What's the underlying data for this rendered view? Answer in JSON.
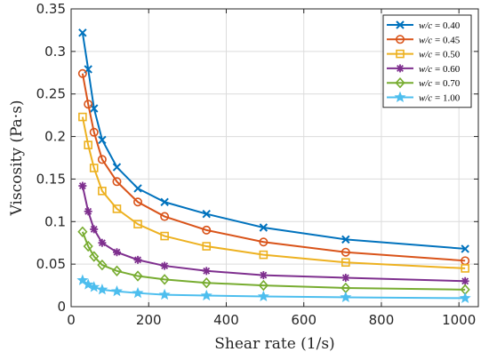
{
  "chart_data": {
    "type": "line",
    "xlabel": "Shear rate (1/s)",
    "ylabel": "Viscosity (Pa·s)",
    "xlim": [
      0,
      1050
    ],
    "ylim": [
      0,
      0.35
    ],
    "xticks": [
      0,
      200,
      400,
      600,
      800,
      1000
    ],
    "xtick_labels": [
      "0",
      "200",
      "400",
      "600",
      "800",
      "1000"
    ],
    "yticks": [
      0,
      0.05,
      0.1,
      0.15,
      0.2,
      0.25,
      0.3,
      0.35
    ],
    "ytick_labels": [
      "0",
      "0.05",
      "0.1",
      "0.15",
      "0.2",
      "0.25",
      "0.3",
      "0.35"
    ],
    "grid": true,
    "legend_position": "top-right",
    "x": [
      29.5,
      44,
      59,
      80,
      118,
      172,
      241,
      349,
      496,
      708,
      1016
    ],
    "series": [
      {
        "name_var": "w/c",
        "name_value": "= 0.40",
        "marker": "x",
        "color": "#0072BD",
        "values": [
          0.322,
          0.279,
          0.233,
          0.196,
          0.164,
          0.139,
          0.123,
          0.109,
          0.093,
          0.079,
          0.068
        ]
      },
      {
        "name_var": "w/c",
        "name_value": "= 0.45",
        "marker": "o",
        "color": "#D95319",
        "values": [
          0.274,
          0.238,
          0.205,
          0.173,
          0.147,
          0.123,
          0.106,
          0.09,
          0.076,
          0.064,
          0.054
        ]
      },
      {
        "name_var": "w/c",
        "name_value": "= 0.50",
        "marker": "s",
        "color": "#EDB120",
        "values": [
          0.223,
          0.19,
          0.163,
          0.136,
          0.115,
          0.097,
          0.083,
          0.071,
          0.061,
          0.052,
          0.045
        ]
      },
      {
        "name_var": "w/c",
        "name_value": "= 0.60",
        "marker": "*",
        "color": "#7E2F8E",
        "values": [
          0.142,
          0.112,
          0.091,
          0.075,
          0.064,
          0.055,
          0.048,
          0.042,
          0.037,
          0.034,
          0.03
        ]
      },
      {
        "name_var": "w/c",
        "name_value": "= 0.70",
        "marker": "d",
        "color": "#77AC30",
        "values": [
          0.088,
          0.071,
          0.059,
          0.049,
          0.042,
          0.036,
          0.032,
          0.028,
          0.025,
          0.022,
          0.02
        ]
      },
      {
        "name_var": "w/c",
        "name_value": "= 1.00",
        "marker": "p",
        "color": "#4DBEEE",
        "values": [
          0.031,
          0.026,
          0.023,
          0.02,
          0.018,
          0.016,
          0.014,
          0.013,
          0.012,
          0.011,
          0.01
        ]
      }
    ]
  }
}
